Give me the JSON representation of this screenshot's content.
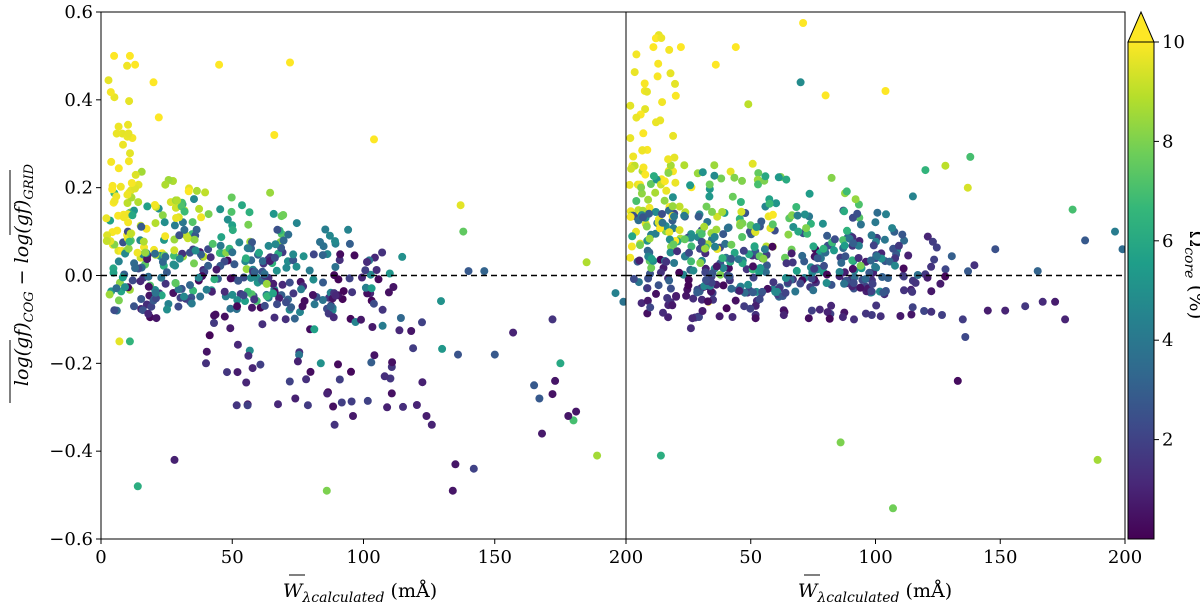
{
  "chart_data": {
    "type": "scatter",
    "panels": [
      {
        "name": "left",
        "xlim": [
          0,
          200
        ],
        "ylim": [
          -0.6,
          0.6
        ],
        "x_ticks": [
          0,
          50,
          100,
          150,
          200
        ],
        "x_tick_labels": [
          "0",
          "50",
          "100",
          "150",
          "200"
        ],
        "y_ticks": [
          -0.6,
          -0.4,
          -0.2,
          0.0,
          0.2,
          0.4,
          0.6
        ],
        "y_tick_labels": [
          "−0.6",
          "−0.4",
          "−0.2",
          "0.0",
          "0.2",
          "0.4",
          "0.6"
        ],
        "xlabel_main": "W",
        "xlabel_sub": "λcalculated",
        "xlabel_unit": " (mÅ)",
        "reference_line_y": 0.0,
        "clusters": [
          {
            "x_range": [
              2,
              12
            ],
            "y_range": [
              0.03,
              0.48
            ],
            "c_range": [
              9.6,
              10
            ],
            "count": 38
          },
          {
            "x_range": [
              2,
              40
            ],
            "y_range": [
              0.04,
              0.24
            ],
            "c_range": [
              8.2,
              10
            ],
            "count": 55
          },
          {
            "x_range": [
              3,
              70
            ],
            "y_range": [
              -0.06,
              0.2
            ],
            "c_range": [
              4.5,
              8.6
            ],
            "count": 90
          },
          {
            "x_range": [
              5,
              95
            ],
            "y_range": [
              -0.08,
              0.13
            ],
            "c_range": [
              2.2,
              5.0
            ],
            "count": 110
          },
          {
            "x_range": [
              10,
              110
            ],
            "y_range": [
              -0.1,
              0.06
            ],
            "c_range": [
              0.1,
              2.4
            ],
            "count": 95
          },
          {
            "x_range": [
              40,
              125
            ],
            "y_range": [
              -0.3,
              -0.02
            ],
            "c_range": [
              0.1,
              2.0
            ],
            "count": 55
          },
          {
            "x_range": [
              40,
              130
            ],
            "y_range": [
              -0.2,
              0.08
            ],
            "c_range": [
              2.5,
              6.0
            ],
            "count": 30
          }
        ],
        "extra_points": [
          {
            "x": 5,
            "y": 0.5,
            "c": 10
          },
          {
            "x": 11,
            "y": 0.5,
            "c": 10
          },
          {
            "x": 13,
            "y": 0.48,
            "c": 10
          },
          {
            "x": 22,
            "y": 0.36,
            "c": 10
          },
          {
            "x": 20,
            "y": 0.44,
            "c": 10
          },
          {
            "x": 45,
            "y": 0.48,
            "c": 10
          },
          {
            "x": 72,
            "y": 0.485,
            "c": 10
          },
          {
            "x": 104,
            "y": 0.31,
            "c": 10
          },
          {
            "x": 66,
            "y": 0.32,
            "c": 10
          },
          {
            "x": 14,
            "y": -0.48,
            "c": 6.2
          },
          {
            "x": 28,
            "y": -0.42,
            "c": 0.9
          },
          {
            "x": 86,
            "y": -0.49,
            "c": 8.0
          },
          {
            "x": 134,
            "y": -0.49,
            "c": 0.6
          },
          {
            "x": 135,
            "y": -0.43,
            "c": 0.6
          },
          {
            "x": 142,
            "y": -0.44,
            "c": 2.0
          },
          {
            "x": 150,
            "y": -0.18,
            "c": 2.8
          },
          {
            "x": 140,
            "y": 0.01,
            "c": 2.8
          },
          {
            "x": 146,
            "y": 0.01,
            "c": 3.2
          },
          {
            "x": 165,
            "y": -0.25,
            "c": 2.8
          },
          {
            "x": 167,
            "y": -0.28,
            "c": 2.8
          },
          {
            "x": 168,
            "y": -0.36,
            "c": 0.7
          },
          {
            "x": 172,
            "y": -0.27,
            "c": 0.5
          },
          {
            "x": 173,
            "y": -0.24,
            "c": 0.6
          },
          {
            "x": 175,
            "y": -0.2,
            "c": 6.0
          },
          {
            "x": 178,
            "y": -0.32,
            "c": 0.6
          },
          {
            "x": 181,
            "y": -0.31,
            "c": 0.6
          },
          {
            "x": 180,
            "y": -0.33,
            "c": 7.0
          },
          {
            "x": 189,
            "y": -0.41,
            "c": 8.6
          },
          {
            "x": 185,
            "y": 0.03,
            "c": 8.8
          },
          {
            "x": 137,
            "y": 0.16,
            "c": 9.6
          },
          {
            "x": 138,
            "y": 0.1,
            "c": 7.5
          },
          {
            "x": 172,
            "y": -0.1,
            "c": 1.5
          },
          {
            "x": 157,
            "y": -0.13,
            "c": 1.0
          },
          {
            "x": 126,
            "y": -0.34,
            "c": 1.0
          },
          {
            "x": 124,
            "y": -0.32,
            "c": 0.8
          },
          {
            "x": 109,
            "y": -0.3,
            "c": 0.9
          },
          {
            "x": 96,
            "y": -0.32,
            "c": 0.7
          },
          {
            "x": 89,
            "y": -0.34,
            "c": 1.5
          },
          {
            "x": 74,
            "y": -0.28,
            "c": 0.9
          },
          {
            "x": 48,
            "y": -0.22,
            "c": 1.6
          },
          {
            "x": 52,
            "y": -0.22,
            "c": 0.8
          },
          {
            "x": 40,
            "y": -0.2,
            "c": 1.4
          },
          {
            "x": 7,
            "y": -0.15,
            "c": 9.6
          },
          {
            "x": 11,
            "y": -0.15,
            "c": 6.5
          },
          {
            "x": 136,
            "y": -0.18,
            "c": 2.6
          },
          {
            "x": 196,
            "y": -0.04,
            "c": 4.4
          },
          {
            "x": 199,
            "y": -0.06,
            "c": 3.8
          }
        ]
      },
      {
        "name": "right",
        "xlim": [
          0,
          200
        ],
        "ylim": [
          -0.6,
          0.6
        ],
        "x_ticks": [
          0,
          50,
          100,
          150,
          200
        ],
        "x_tick_labels": [
          "",
          "50",
          "100",
          "150",
          "200"
        ],
        "xlabel_main": "W",
        "xlabel_sub": "λcalculated",
        "xlabel_unit": " (mÅ)",
        "reference_line_y": 0.0,
        "clusters": [
          {
            "x_range": [
              1,
              20
            ],
            "y_range": [
              0.04,
              0.55
            ],
            "c_range": [
              9.6,
              10
            ],
            "count": 50
          },
          {
            "x_range": [
              2,
              60
            ],
            "y_range": [
              0.06,
              0.26
            ],
            "c_range": [
              8.0,
              10
            ],
            "count": 55
          },
          {
            "x_range": [
              2,
              95
            ],
            "y_range": [
              0.0,
              0.24
            ],
            "c_range": [
              4.5,
              8.5
            ],
            "count": 110
          },
          {
            "x_range": [
              2,
              110
            ],
            "y_range": [
              -0.04,
              0.15
            ],
            "c_range": [
              2.0,
              5.0
            ],
            "count": 170
          },
          {
            "x_range": [
              5,
              130
            ],
            "y_range": [
              -0.1,
              0.07
            ],
            "c_range": [
              0.1,
              2.2
            ],
            "count": 140
          },
          {
            "x_range": [
              60,
              140
            ],
            "y_range": [
              -0.05,
              0.12
            ],
            "c_range": [
              0.5,
              4.0
            ],
            "count": 40
          }
        ],
        "extra_points": [
          {
            "x": 12,
            "y": 0.54,
            "c": 10
          },
          {
            "x": 11,
            "y": 0.52,
            "c": 10
          },
          {
            "x": 22,
            "y": 0.52,
            "c": 10
          },
          {
            "x": 44,
            "y": 0.52,
            "c": 10
          },
          {
            "x": 36,
            "y": 0.48,
            "c": 10
          },
          {
            "x": 71,
            "y": 0.575,
            "c": 10
          },
          {
            "x": 70,
            "y": 0.44,
            "c": 4.8
          },
          {
            "x": 49,
            "y": 0.39,
            "c": 9.0
          },
          {
            "x": 80,
            "y": 0.41,
            "c": 10
          },
          {
            "x": 104,
            "y": 0.42,
            "c": 10
          },
          {
            "x": 14,
            "y": -0.41,
            "c": 6.2
          },
          {
            "x": 86,
            "y": -0.38,
            "c": 8.0
          },
          {
            "x": 107,
            "y": -0.53,
            "c": 7.8
          },
          {
            "x": 189,
            "y": -0.42,
            "c": 8.6
          },
          {
            "x": 133,
            "y": -0.24,
            "c": 0.3
          },
          {
            "x": 136,
            "y": -0.14,
            "c": 2.2
          },
          {
            "x": 135,
            "y": -0.1,
            "c": 1.8
          },
          {
            "x": 184,
            "y": 0.08,
            "c": 2.8
          },
          {
            "x": 179,
            "y": 0.15,
            "c": 7.0
          },
          {
            "x": 196,
            "y": 0.1,
            "c": 4.2
          },
          {
            "x": 199,
            "y": 0.06,
            "c": 3.5
          },
          {
            "x": 176,
            "y": -0.1,
            "c": 1.0
          },
          {
            "x": 172,
            "y": -0.06,
            "c": 0.8
          },
          {
            "x": 167,
            "y": -0.06,
            "c": 1.2
          },
          {
            "x": 160,
            "y": -0.07,
            "c": 1.6
          },
          {
            "x": 152,
            "y": -0.08,
            "c": 1.0
          },
          {
            "x": 145,
            "y": -0.08,
            "c": 0.8
          },
          {
            "x": 148,
            "y": 0.06,
            "c": 2.5
          },
          {
            "x": 165,
            "y": 0.01,
            "c": 3.2
          },
          {
            "x": 138,
            "y": 0.27,
            "c": 7.0
          },
          {
            "x": 137,
            "y": 0.2,
            "c": 9.4
          },
          {
            "x": 128,
            "y": 0.25,
            "c": 9.0
          },
          {
            "x": 120,
            "y": 0.24,
            "c": 6.5
          },
          {
            "x": 115,
            "y": 0.18,
            "c": 4.5
          },
          {
            "x": 26,
            "y": -0.12,
            "c": 1.2
          },
          {
            "x": 33,
            "y": -0.06,
            "c": 9.8
          }
        ]
      }
    ],
    "ylabel": "log(gf)COG − log(gf)GRID",
    "ylabel_parts": {
      "t1": "log(gf)",
      "s1": "COG",
      "t2": " − ",
      "t3": "log(gf)",
      "s2": "GRID"
    },
    "colorbar": {
      "label": "Ωcore (%)",
      "label_main": "Ω",
      "label_sub": "core",
      "label_unit": " (%)",
      "range": [
        0,
        10
      ],
      "extend": "max",
      "cmap": "viridis",
      "ticks": [
        2,
        4,
        6,
        8,
        10
      ],
      "tick_labels": [
        "2",
        "4",
        "6",
        "8",
        "10"
      ]
    }
  },
  "colors": {
    "reference_line": "#000000",
    "viridis": [
      "#440154",
      "#482878",
      "#3e4989",
      "#31688e",
      "#26828e",
      "#1f9e89",
      "#35b779",
      "#6ece58",
      "#b5de2b",
      "#fde725"
    ]
  }
}
